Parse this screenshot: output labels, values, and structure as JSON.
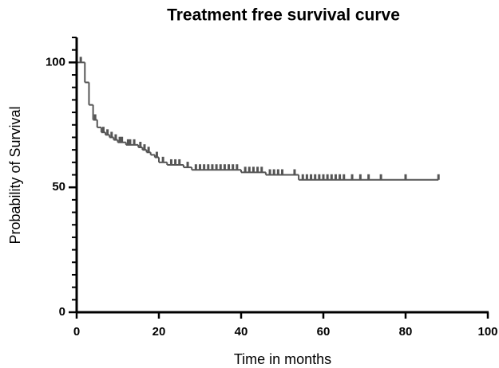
{
  "chart_data": {
    "type": "step",
    "title": "Treatment free survival curve",
    "x_label": "Time in months",
    "y_label": "Probability of Survival",
    "xlim": [
      0,
      100
    ],
    "xticks": [
      0,
      20,
      40,
      60,
      80,
      100
    ],
    "ylim": [
      0,
      110
    ],
    "yticks": [
      0,
      50,
      100
    ],
    "yminorticks": [
      5,
      10,
      15,
      20,
      25,
      30,
      35,
      40,
      45,
      55,
      60,
      65,
      70,
      75,
      80,
      85,
      90,
      95,
      105,
      110
    ],
    "color": "#555555",
    "series": [
      {
        "x": [
          0,
          2,
          3,
          4,
          5,
          6,
          7,
          8,
          9,
          10,
          12,
          15,
          16,
          17,
          18,
          19,
          20,
          22,
          26,
          28,
          40,
          46,
          54,
          88
        ],
        "values": [
          100,
          92,
          83,
          77,
          74,
          72,
          71,
          70,
          69,
          68,
          67,
          66,
          65,
          64,
          63,
          62,
          60,
          59,
          58,
          57,
          56,
          55,
          53,
          53
        ]
      }
    ],
    "censored": {
      "x": [
        1,
        4.5,
        6.5,
        7.5,
        8.5,
        9.5,
        10.5,
        11,
        12.5,
        13,
        14,
        15.5,
        16.5,
        17.5,
        19.5,
        21,
        23,
        24,
        25,
        27,
        29,
        30,
        31,
        32,
        33,
        34,
        35,
        36,
        37,
        38,
        39,
        41,
        42,
        43,
        44,
        45,
        47,
        48,
        49,
        50,
        53,
        55,
        56,
        57,
        58,
        59,
        60,
        61,
        62,
        63,
        64,
        65,
        67,
        69,
        71,
        74,
        80,
        88
      ],
      "values": [
        100,
        77,
        72,
        71,
        70,
        69,
        68,
        68,
        67,
        67,
        67,
        66,
        65,
        64,
        62,
        60,
        59,
        59,
        59,
        58,
        57,
        57,
        57,
        57,
        57,
        57,
        57,
        57,
        57,
        57,
        57,
        56,
        56,
        56,
        56,
        56,
        55,
        55,
        55,
        55,
        55,
        53,
        53,
        53,
        53,
        53,
        53,
        53,
        53,
        53,
        53,
        53,
        53,
        53,
        53,
        53,
        53,
        53
      ]
    }
  }
}
